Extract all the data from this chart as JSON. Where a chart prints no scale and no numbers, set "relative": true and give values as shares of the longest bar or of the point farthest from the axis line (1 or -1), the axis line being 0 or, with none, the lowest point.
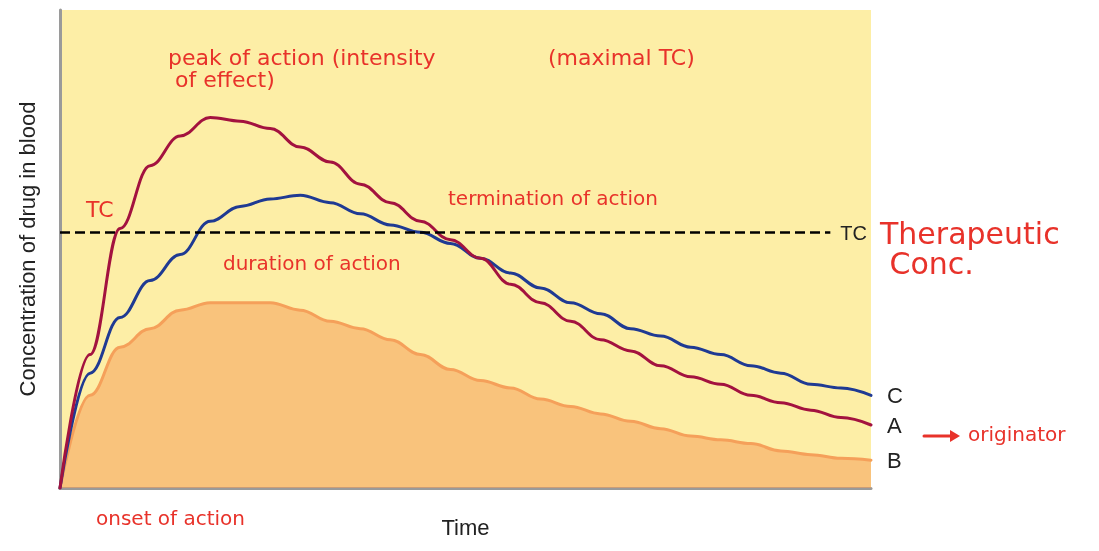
{
  "chart_data": {
    "type": "line",
    "relative": true,
    "xlabel": "Time",
    "ylabel": "Concentration of drug in blood",
    "categories": [
      null,
      null,
      null,
      null,
      null,
      null,
      null,
      null,
      null,
      null,
      null,
      null,
      null,
      null,
      null,
      null,
      null,
      null,
      null,
      null,
      null,
      null,
      null,
      null,
      null,
      null,
      null,
      null
    ],
    "series": [
      {
        "name": "C",
        "color": "#1f3a93",
        "values": [
          0,
          0.31,
          0.46,
          0.56,
          0.63,
          0.72,
          0.76,
          0.78,
          0.79,
          0.77,
          0.74,
          0.71,
          0.69,
          0.66,
          0.62,
          0.58,
          0.54,
          0.5,
          0.47,
          0.43,
          0.41,
          0.38,
          0.36,
          0.33,
          0.31,
          0.28,
          0.27,
          0.25
        ]
      },
      {
        "name": "A",
        "color": "#a3123f",
        "values": [
          0,
          0.36,
          0.7,
          0.87,
          0.95,
          1,
          0.99,
          0.97,
          0.92,
          0.88,
          0.82,
          0.77,
          0.72,
          0.67,
          0.62,
          0.55,
          0.5,
          0.45,
          0.4,
          0.37,
          0.33,
          0.3,
          0.28,
          0.25,
          0.23,
          0.21,
          0.19,
          0.17
        ]
      },
      {
        "name": "B",
        "type": "area",
        "color": "#f5a05a",
        "values": [
          0,
          0.25,
          0.38,
          0.43,
          0.48,
          0.5,
          0.5,
          0.5,
          0.48,
          0.45,
          0.43,
          0.4,
          0.36,
          0.32,
          0.29,
          0.27,
          0.24,
          0.22,
          0.2,
          0.18,
          0.16,
          0.14,
          0.13,
          0.12,
          0.1,
          0.09,
          0.08,
          0.075
        ]
      }
    ],
    "ref_lines": [
      {
        "axis": "y",
        "value": 0.69,
        "label": "TC",
        "color": "#000000",
        "line_style": "dashed"
      }
    ],
    "annotations": [
      "peak of action (intensity of effect)",
      "(maximal TC)",
      "TC",
      "termination of action",
      "duration of action",
      "onset of action",
      "Therapeutic Conc.",
      "originator"
    ],
    "grid": false,
    "legend": false,
    "marker": "none",
    "line_style": "solid"
  }
}
